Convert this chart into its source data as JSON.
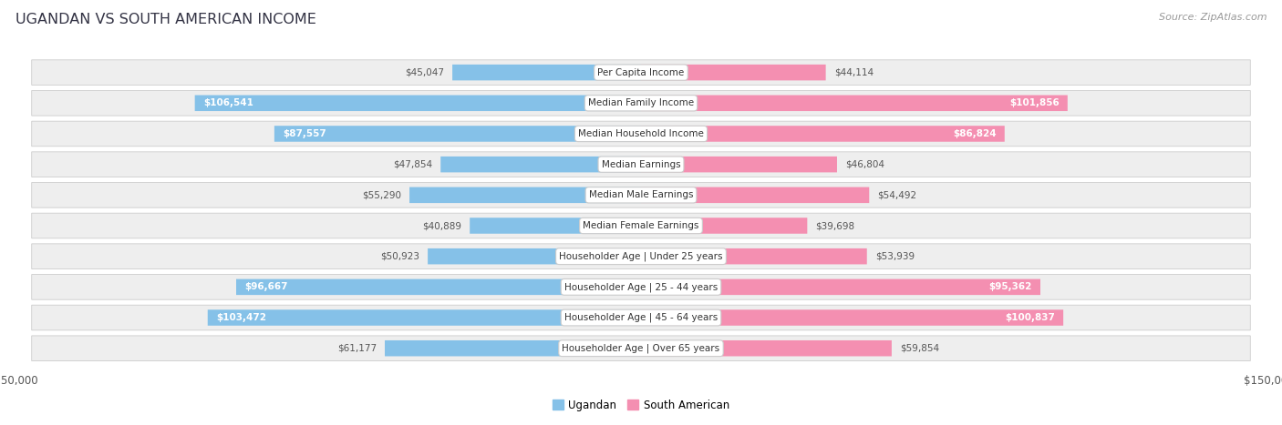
{
  "title": "UGANDAN VS SOUTH AMERICAN INCOME",
  "source": "Source: ZipAtlas.com",
  "categories": [
    "Per Capita Income",
    "Median Family Income",
    "Median Household Income",
    "Median Earnings",
    "Median Male Earnings",
    "Median Female Earnings",
    "Householder Age | Under 25 years",
    "Householder Age | 25 - 44 years",
    "Householder Age | 45 - 64 years",
    "Householder Age | Over 65 years"
  ],
  "ugandan_values": [
    45047,
    106541,
    87557,
    47854,
    55290,
    40889,
    50923,
    96667,
    103472,
    61177
  ],
  "south_american_values": [
    44114,
    101856,
    86824,
    46804,
    54492,
    39698,
    53939,
    95362,
    100837,
    59854
  ],
  "ugandan_labels": [
    "$45,047",
    "$106,541",
    "$87,557",
    "$47,854",
    "$55,290",
    "$40,889",
    "$50,923",
    "$96,667",
    "$103,472",
    "$61,177"
  ],
  "south_american_labels": [
    "$44,114",
    "$101,856",
    "$86,824",
    "$46,804",
    "$54,492",
    "$39,698",
    "$53,939",
    "$95,362",
    "$100,837",
    "$59,854"
  ],
  "ugandan_color": "#85C1E8",
  "south_american_color": "#F48FB1",
  "row_bg_color": "#EEEEEE",
  "max_value": 150000,
  "label_inside_threshold": 65000,
  "legend_ugandan": "Ugandan",
  "legend_south_american": "South American",
  "title_color": "#333344",
  "source_color": "#999999"
}
